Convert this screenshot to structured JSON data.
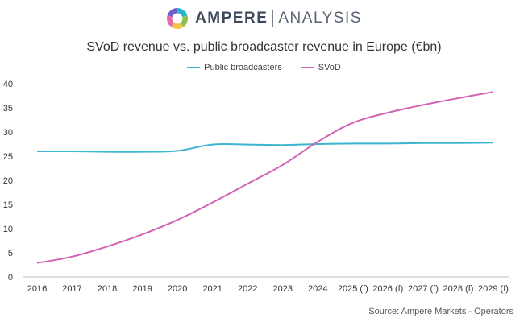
{
  "brand": {
    "name": "AMPERE",
    "sub": "ANALYSIS",
    "logo_colors": [
      "#2bb3d3",
      "#8bc34a",
      "#f5c244",
      "#e56aa8",
      "#6f5fc7"
    ]
  },
  "source": "Source: Ampere Markets - Operators",
  "chart_data": {
    "type": "line",
    "title": "SVoD revenue vs. public broadcaster revenue in Europe (€bn)",
    "xlabel": "",
    "ylabel": "",
    "categories": [
      "2016",
      "2017",
      "2018",
      "2019",
      "2020",
      "2021",
      "2022",
      "2023",
      "2024",
      "2025 (f)",
      "2026 (f)",
      "2027 (f)",
      "2028 (f)",
      "2029 (f)"
    ],
    "ylim": [
      0,
      40
    ],
    "yticks": [
      0,
      5,
      10,
      15,
      20,
      25,
      30,
      35,
      40
    ],
    "grid": false,
    "legend_position": "top-center",
    "series": [
      {
        "name": "Public broadcasters",
        "color": "#3bb5cf",
        "values": [
          26.0,
          26.0,
          25.9,
          25.9,
          26.1,
          27.4,
          27.4,
          27.3,
          27.5,
          27.6,
          27.6,
          27.7,
          27.7,
          27.8
        ]
      },
      {
        "name": "SVoD",
        "color": "#d462b4",
        "values": [
          2.9,
          4.2,
          6.3,
          8.8,
          11.8,
          15.4,
          19.3,
          23.2,
          28.0,
          31.9,
          34.0,
          35.6,
          37.0,
          38.3
        ]
      }
    ]
  }
}
